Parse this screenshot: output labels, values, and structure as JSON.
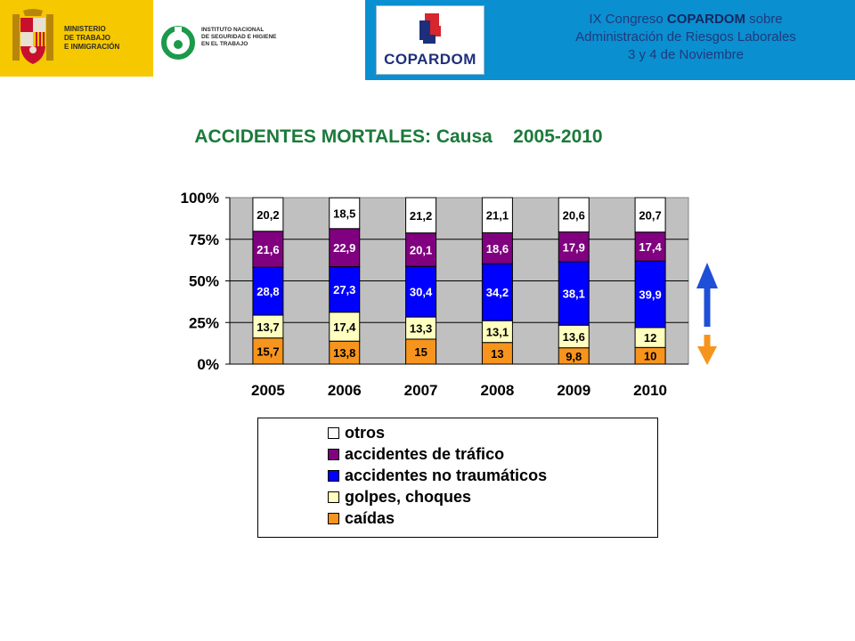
{
  "header": {
    "ministry_lines": [
      "MINISTERIO",
      "DE TRABAJO",
      "E INMIGRACIÓN"
    ],
    "institute_lines": [
      "INSTITUTO NACIONAL",
      "DE SEGURIDAD E HIGIENE",
      "EN EL TRABAJO"
    ],
    "copardom_logo_text": "COPARDOM",
    "congress_line1_pre": "IX Congreso ",
    "congress_line1_bold": "COPARDOM",
    "congress_line1_post": " sobre",
    "congress_line2": "Administración de Riesgos Laborales",
    "congress_line3": "3 y 4 de Noviembre"
  },
  "colors": {
    "header_yellow": "#f6c800",
    "header_blue": "#0a8fd1",
    "title_green": "#1b7a3a",
    "plot_bg": "#c0c0c0",
    "arrow_up": "#1f4fd6",
    "arrow_down": "#f7941d"
  },
  "chart_data": {
    "type": "bar",
    "stacked": true,
    "percent": true,
    "title": "ACCIDENTES MORTALES: Causa    2005-2010",
    "categories": [
      "2005",
      "2006",
      "2007",
      "2008",
      "2009",
      "2010"
    ],
    "y_ticks": [
      "0%",
      "25%",
      "50%",
      "75%",
      "100%"
    ],
    "ylim": [
      0,
      100
    ],
    "grid": true,
    "legend_position": "bottom",
    "series": [
      {
        "name": "caídas",
        "color": "#f7941d",
        "text_color": "#000000",
        "values": [
          15.7,
          13.8,
          15,
          13,
          9.8,
          10
        ],
        "labels": [
          "15,7",
          "13,8",
          "15",
          "13",
          "9,8",
          "10"
        ]
      },
      {
        "name": "golpes, choques",
        "color": "#ffffc0",
        "text_color": "#000000",
        "values": [
          13.7,
          17.4,
          13.3,
          13.1,
          13.6,
          12
        ],
        "labels": [
          "13,7",
          "17,4",
          "13,3",
          "13,1",
          "13,6",
          "12"
        ]
      },
      {
        "name": "accidentes no traumáticos",
        "color": "#0000ff",
        "text_color": "#ffffff",
        "values": [
          28.8,
          27.3,
          30.4,
          34.2,
          38.1,
          39.9
        ],
        "labels": [
          "28,8",
          "27,3",
          "30,4",
          "34,2",
          "38,1",
          "39,9"
        ]
      },
      {
        "name": "accidentes de tráfico",
        "color": "#800080",
        "text_color": "#ffffff",
        "values": [
          21.6,
          22.9,
          20.1,
          18.6,
          17.9,
          17.4
        ],
        "labels": [
          "21,6",
          "22,9",
          "20,1",
          "18,6",
          "17,9",
          "17,4"
        ]
      },
      {
        "name": "otros",
        "color": "#ffffff",
        "text_color": "#000000",
        "values": [
          20.2,
          18.5,
          21.2,
          21.1,
          20.6,
          20.7
        ],
        "labels": [
          "20,2",
          "18,5",
          "21,2",
          "21,1",
          "20,6",
          "20,7"
        ]
      }
    ],
    "legend_order": [
      "otros",
      "accidentes de tráfico",
      "accidentes no traumáticos",
      "golpes, choques",
      "caídas"
    ]
  }
}
